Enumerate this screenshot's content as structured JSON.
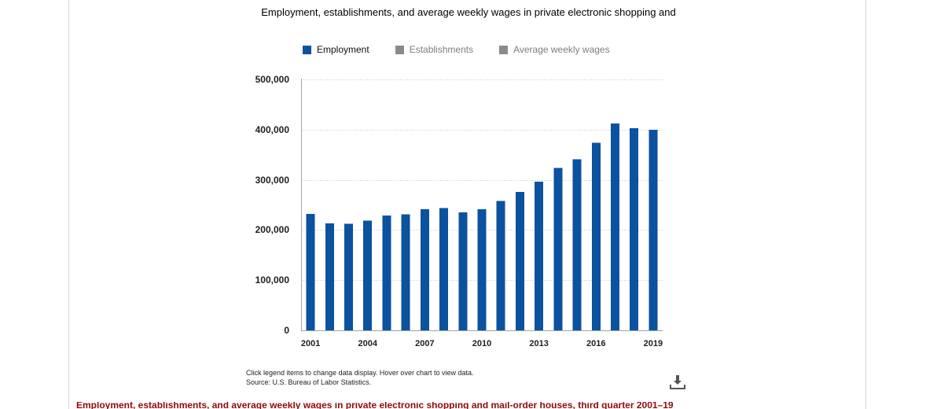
{
  "chart_data": {
    "type": "bar",
    "title": "Employment, establishments, and average weekly wages in private electronic shopping and",
    "x": [
      2001,
      2002,
      2003,
      2004,
      2005,
      2006,
      2007,
      2008,
      2009,
      2010,
      2011,
      2012,
      2013,
      2014,
      2015,
      2016,
      2017,
      2018,
      2019
    ],
    "series": [
      {
        "name": "Employment",
        "color": "#0b529f",
        "legend_color": "#0b529f",
        "legend_text_color": "#111111",
        "visible": true,
        "values": [
          232000,
          213000,
          212000,
          219000,
          229000,
          231000,
          241000,
          244000,
          235000,
          241000,
          258000,
          276000,
          296000,
          324000,
          341000,
          374000,
          412000,
          403000,
          400000
        ]
      },
      {
        "name": "Establishments",
        "legend_color": "#8a8a8a",
        "legend_text_color": "#7d7d7d",
        "visible": false
      },
      {
        "name": "Average weekly wages",
        "legend_color": "#8a8a8a",
        "legend_text_color": "#7d7d7d",
        "visible": false
      }
    ],
    "legend": {
      "placement": "top"
    },
    "ylim": [
      0,
      500000
    ],
    "yticks": [
      0,
      100000,
      200000,
      300000,
      400000,
      500000
    ],
    "ytick_labels": [
      "0",
      "100,000",
      "200,000",
      "300,000",
      "400,000",
      "500,000"
    ],
    "xticks": [
      2001,
      2004,
      2007,
      2010,
      2013,
      2016,
      2019
    ],
    "grid": true
  },
  "chart_footer": {
    "instructions": "Click legend items to change data display. Hover over chart to view data.",
    "source": "Source: U.S. Bureau of Labor Statistics."
  },
  "toolbar": {
    "download_icon": "download-icon"
  },
  "page": {
    "caption": "Employment, establishments, and average weekly wages in private electronic shopping and mail-order houses, third quarter 2001–19"
  }
}
